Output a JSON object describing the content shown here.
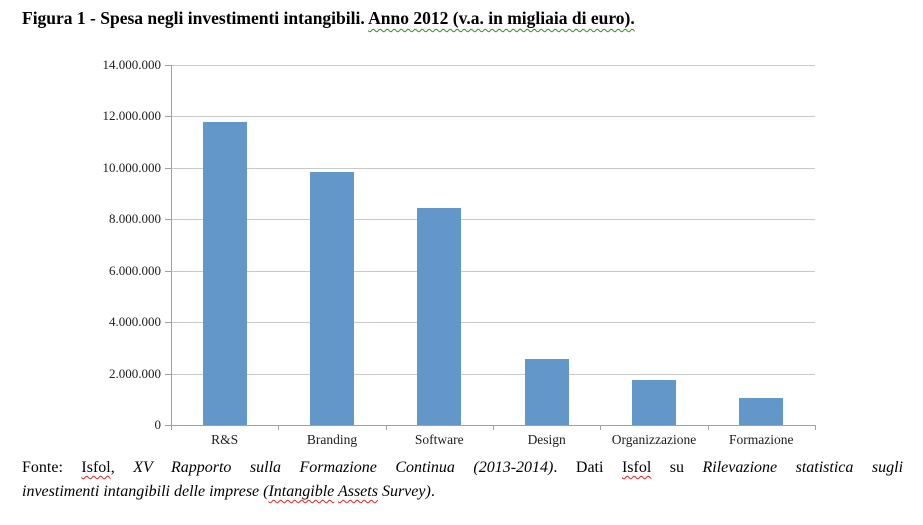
{
  "page": {
    "title": {
      "part1": "Figura 1 - Spesa negli investimenti intangibili. ",
      "part2": "Anno 2012 (v.a. in migliaia di euro)."
    }
  },
  "chart_data": {
    "type": "bar",
    "title": "Figura 1 - Spesa negli investimenti intangibili. Anno 2012 (v.a. in migliaia di euro).",
    "xlabel": "",
    "ylabel": "",
    "categories": [
      "R&S",
      "Branding",
      "Software",
      "Design",
      "Organizzazione",
      "Formazione"
    ],
    "values": [
      11800000,
      9850000,
      8450000,
      2550000,
      1750000,
      1050000
    ],
    "ylim": [
      0,
      14000000
    ],
    "y_tick_interval": 2000000,
    "y_tick_labels": [
      "14.000.000",
      "12.000.000",
      "10.000.000",
      "8.000.000",
      "6.000.000",
      "4.000.000",
      "2.000.000",
      "0"
    ],
    "grid": true,
    "legend": false,
    "bar_color": "#6396c9",
    "gridline_color": "#c9c9c9",
    "axis_color": "#a0a0a0"
  },
  "footer": {
    "lines": [
      {
        "justify": true,
        "segments": [
          {
            "text": "Fonte: ",
            "italic": false
          },
          {
            "text": "Isfol",
            "italic": false,
            "squiggle": "red"
          },
          {
            "text": ", ",
            "italic": false
          },
          {
            "text": "XV Rapporto sulla Formazione Continua (2013-2014)",
            "italic": true
          },
          {
            "text": ". Dati ",
            "italic": false
          },
          {
            "text": "Isfol",
            "italic": false,
            "squiggle": "red"
          },
          {
            "text": " su ",
            "italic": false
          },
          {
            "text": "Rilevazione statistica sugli",
            "italic": true
          }
        ]
      },
      {
        "justify": false,
        "segments": [
          {
            "text": "investimenti intangibili delle imprese (",
            "italic": true
          },
          {
            "text": "Intangible",
            "italic": true,
            "squiggle": "red"
          },
          {
            "text": " ",
            "italic": true
          },
          {
            "text": "Assets",
            "italic": true,
            "squiggle": "red"
          },
          {
            "text": " Survey)",
            "italic": true
          },
          {
            "text": ".",
            "italic": false
          }
        ]
      }
    ]
  }
}
